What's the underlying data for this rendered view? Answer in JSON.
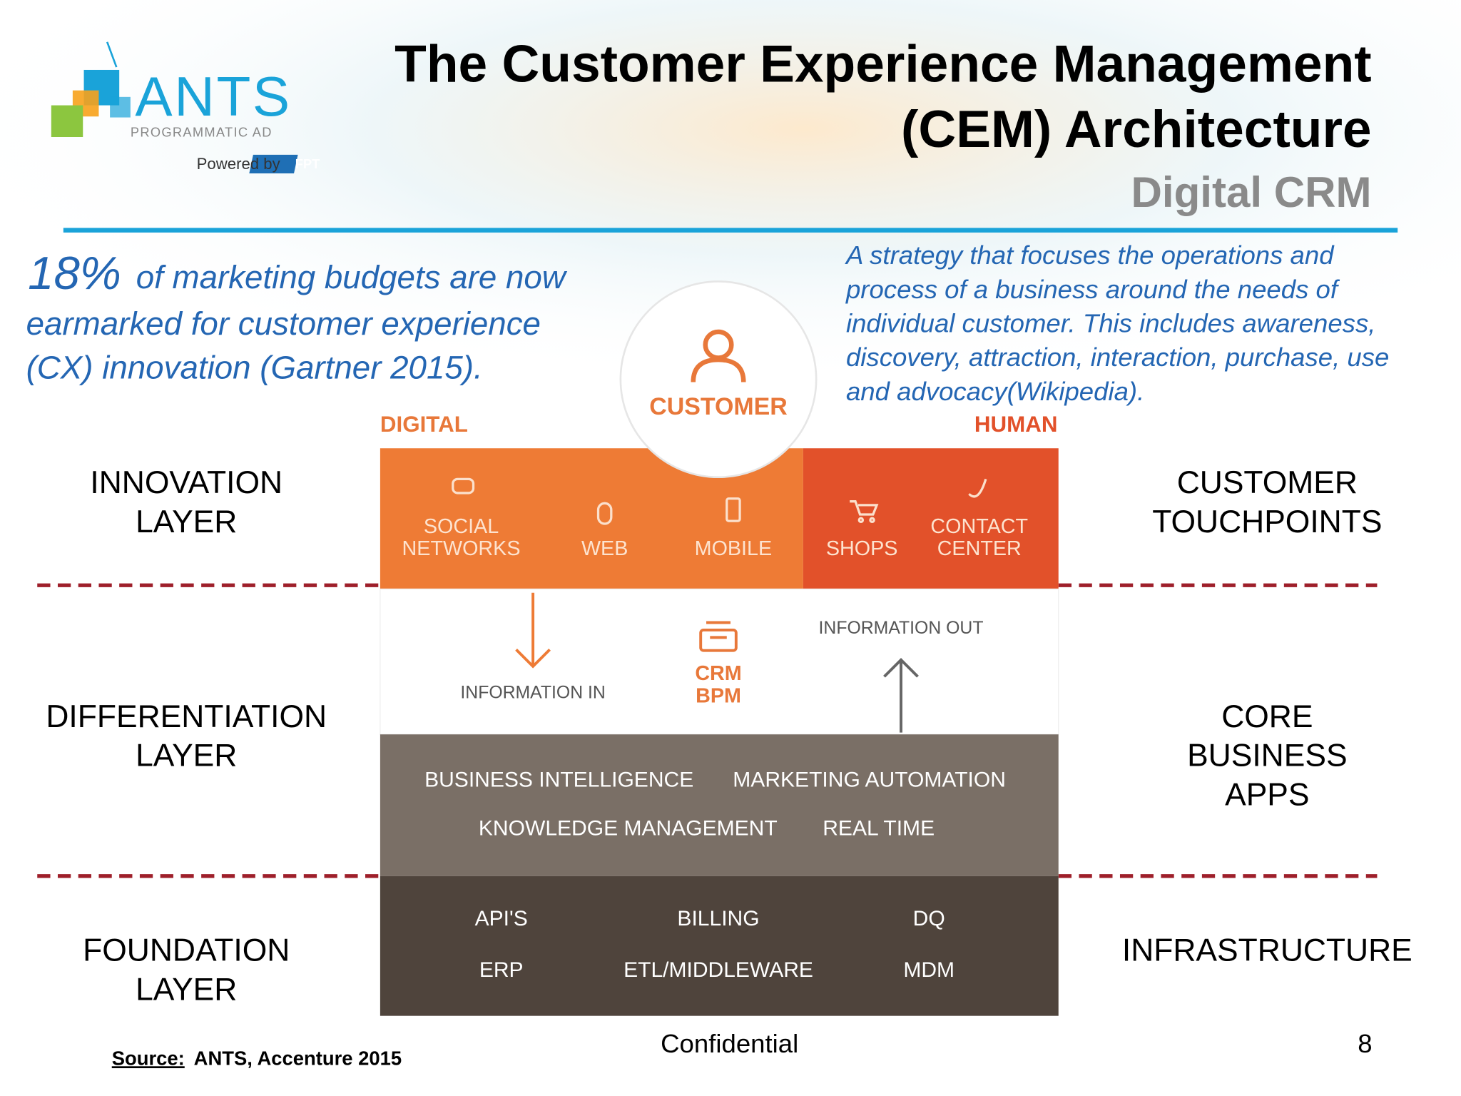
{
  "logo": {
    "name": "ANTS",
    "tagline": "PROGRAMMATIC AD",
    "powered_by": "Powered by",
    "partner": "FPT"
  },
  "header": {
    "title": [
      "The Customer Experience Management",
      "(CEM) Architecture"
    ],
    "subtitle": "Digital CRM"
  },
  "statistic": {
    "figure": "18%",
    "text": [
      "of marketing budgets are now",
      "earmarked for customer experience",
      "(CX) innovation (Gartner 2015)."
    ]
  },
  "definition": [
    "A strategy that focuses the operations and",
    "process of a business around the needs of",
    "individual customer. This includes awareness,",
    "discovery, attraction, interaction, purchase, use",
    "and advocacy(Wikipedia)."
  ],
  "diagram": {
    "customer": "CUSTOMER",
    "digital": "DIGITAL",
    "human": "HUMAN",
    "touchpoints": [
      [
        "SOCIAL",
        "NETWORKS"
      ],
      [
        "WEB"
      ],
      [
        "MOBILE"
      ],
      [
        "SHOPS"
      ],
      [
        "CONTACT",
        "CENTER"
      ]
    ],
    "information_in": "INFORMATION IN",
    "information_out": "INFORMATION OUT",
    "crm": [
      "CRM",
      "BPM"
    ],
    "core": [
      "BUSINESS INTELLIGENCE",
      "MARKETING AUTOMATION",
      "KNOWLEDGE MANAGEMENT",
      "REAL TIME"
    ],
    "foundation": [
      "API'S",
      "BILLING",
      "DQ",
      "ERP",
      "ETL/MIDDLEWARE",
      "MDM"
    ]
  },
  "layers": [
    {
      "left": [
        "INNOVATION",
        "LAYER"
      ],
      "right": [
        "CUSTOMER",
        "TOUCHPOINTS"
      ]
    },
    {
      "left": [
        "DIFFERENTIATION",
        "LAYER"
      ],
      "right": [
        "CORE",
        "BUSINESS",
        "APPS"
      ]
    },
    {
      "left": [
        "FOUNDATION",
        "LAYER"
      ],
      "right": [
        "INFRASTRUCTURE"
      ]
    }
  ],
  "footer": {
    "source_label": "Source:",
    "source": "ANTS, Accenture 2015",
    "confidential": "Confidential",
    "page": "8"
  }
}
